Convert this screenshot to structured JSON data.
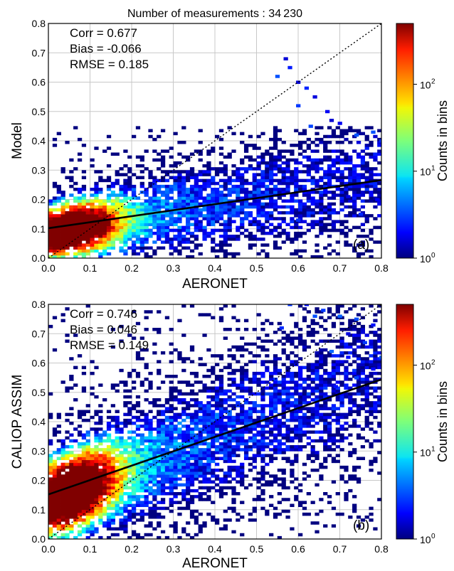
{
  "figure_title": "Number of measurements : 34 230",
  "colorbar_label": "Counts in bins",
  "colorbar_ticks": [
    "10",
    "10",
    "10",
    "10"
  ],
  "colorbar_exponents": [
    "0",
    "1",
    "2"
  ],
  "colors": {
    "grid": "#c8c8c8",
    "fit_line": "#000000",
    "one_to_one": "#000000",
    "background": "#ffffff"
  },
  "chart_data": [
    {
      "type": "heatmap",
      "panel_label": "(a)",
      "xlabel": "AERONET",
      "ylabel": "Model",
      "xlim": [
        0.0,
        0.8
      ],
      "ylim": [
        0.0,
        0.8
      ],
      "x_ticks": [
        "0.0",
        "0.1",
        "0.2",
        "0.3",
        "0.4",
        "0.5",
        "0.6",
        "0.7",
        "0.8"
      ],
      "y_ticks": [
        "0.0",
        "0.1",
        "0.2",
        "0.3",
        "0.4",
        "0.5",
        "0.6",
        "0.7",
        "0.8"
      ],
      "colorscale": "jet",
      "color_scale": "log",
      "color_range": [
        1,
        500
      ],
      "grid": true,
      "stats": [
        "Corr = 0.677",
        "Bias = -0.066",
        "RMSE = 0.185"
      ],
      "fit_line": {
        "slope": 0.205,
        "intercept": 0.102
      },
      "one_to_one_line": true,
      "density_model": {
        "ridge_intercept": 0.085,
        "ridge_slope": 0.24,
        "peak_x": 0.06,
        "y_spread": 0.06,
        "x_max": 0.8,
        "y_max": 0.45
      },
      "extra_points": [
        [
          0.57,
          0.68
        ],
        [
          0.58,
          0.65
        ],
        [
          0.6,
          0.6
        ],
        [
          0.62,
          0.58
        ],
        [
          0.64,
          0.55
        ],
        [
          0.6,
          0.52
        ],
        [
          0.67,
          0.5
        ],
        [
          0.68,
          0.47
        ],
        [
          0.7,
          0.46
        ],
        [
          0.55,
          0.62
        ],
        [
          0.63,
          0.45
        ],
        [
          0.78,
          0.43
        ],
        [
          0.74,
          0.42
        ],
        [
          0.8,
          0.4
        ],
        [
          0.79,
          0.2
        ],
        [
          0.75,
          0.15
        ],
        [
          0.72,
          0.21
        ],
        [
          0.6,
          0.13
        ]
      ]
    },
    {
      "type": "heatmap",
      "panel_label": "(b)",
      "xlabel": "AERONET",
      "ylabel": "CALIOP ASSIM",
      "xlim": [
        0.0,
        0.8
      ],
      "ylim": [
        0.0,
        0.8
      ],
      "x_ticks": [
        "0.0",
        "0.1",
        "0.2",
        "0.3",
        "0.4",
        "0.5",
        "0.6",
        "0.7",
        "0.8"
      ],
      "y_ticks": [
        "0.0",
        "0.1",
        "0.2",
        "0.3",
        "0.4",
        "0.5",
        "0.6",
        "0.7",
        "0.8"
      ],
      "colorscale": "jet",
      "color_scale": "log",
      "color_range": [
        1,
        500
      ],
      "grid": true,
      "stats": [
        "Corr = 0.746",
        "Bias = 0.046",
        "RMSE = 0.149"
      ],
      "fit_line": {
        "slope": 0.49,
        "intercept": 0.152
      },
      "one_to_one_line": true,
      "density_model": {
        "ridge_intercept": 0.13,
        "ridge_slope": 0.55,
        "peak_x": 0.06,
        "y_spread": 0.09,
        "x_max": 0.8,
        "y_max": 0.8
      },
      "extra_points": [
        [
          0.62,
          0.8
        ],
        [
          0.66,
          0.78
        ],
        [
          0.7,
          0.76
        ],
        [
          0.74,
          0.75
        ],
        [
          0.78,
          0.73
        ],
        [
          0.72,
          0.7
        ],
        [
          0.76,
          0.67
        ],
        [
          0.8,
          0.62
        ],
        [
          0.78,
          0.58
        ],
        [
          0.74,
          0.55
        ],
        [
          0.69,
          0.52
        ],
        [
          0.64,
          0.76
        ],
        [
          0.58,
          0.8
        ],
        [
          0.56,
          0.72
        ],
        [
          0.68,
          0.64
        ],
        [
          0.72,
          0.62
        ]
      ]
    }
  ]
}
